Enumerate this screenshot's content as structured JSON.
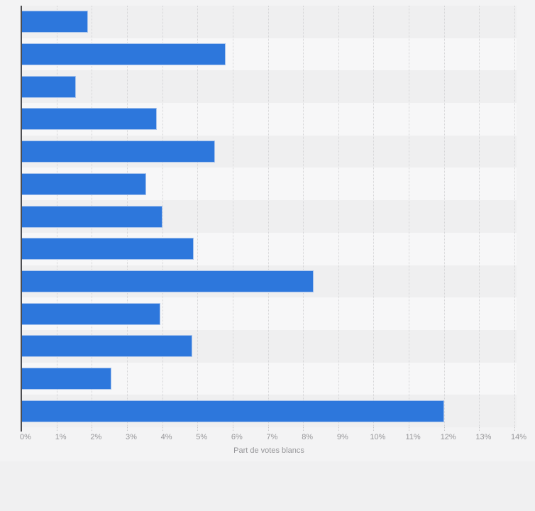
{
  "chart_data": {
    "type": "bar",
    "orientation": "horizontal",
    "title": "",
    "xlabel": "Part de votes blancs",
    "ylabel": "",
    "xlim": [
      0,
      14
    ],
    "grid": true,
    "categories_visible": false,
    "categories": [
      "",
      "",
      "",
      "",
      "",
      "",
      "",
      "",
      "",
      "",
      "",
      "",
      ""
    ],
    "values": [
      1.9,
      5.8,
      1.55,
      3.85,
      5.5,
      3.55,
      4.0,
      4.9,
      8.3,
      3.95,
      4.85,
      2.55,
      12.0
    ],
    "x_tick_labels": [
      "0%",
      "1%",
      "2%",
      "3%",
      "4%",
      "5%",
      "6%",
      "7%",
      "8%",
      "9%",
      "10%",
      "11%",
      "12%",
      "13%",
      "14%"
    ],
    "x_tick_values": [
      0,
      1,
      2,
      3,
      4,
      5,
      6,
      7,
      8,
      9,
      10,
      11,
      12,
      13,
      14
    ],
    "bar_color": "#2d77dc",
    "bar_border_color": "#a9c4ec",
    "stripe_color_dark": "#efeff0",
    "stripe_color_light": "#f7f7f8",
    "axis_line_color": "#4d4d50",
    "label_color": "#969699"
  }
}
